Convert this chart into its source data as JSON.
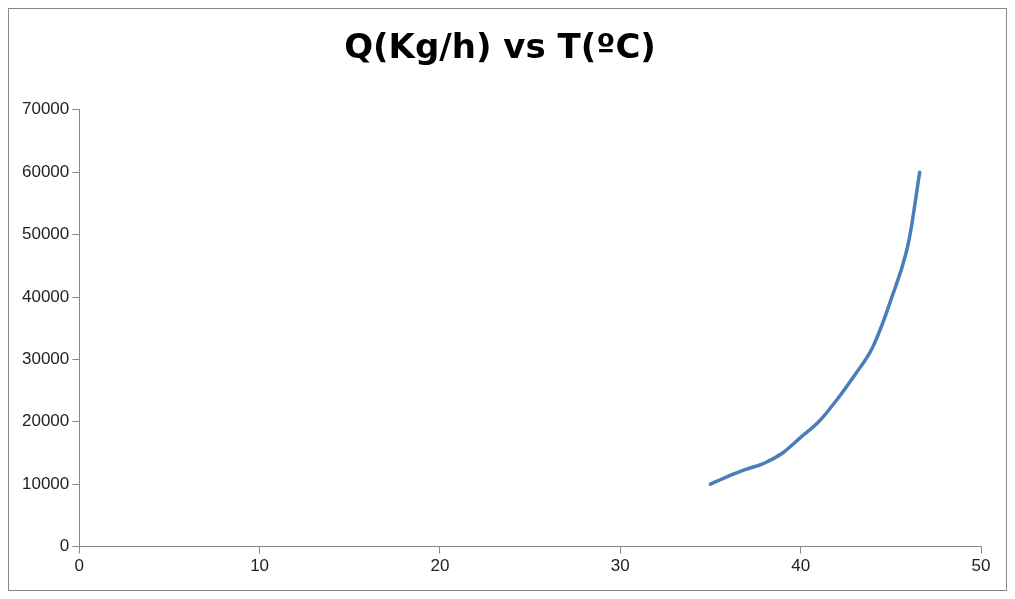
{
  "chart_data": {
    "type": "line",
    "title": "Q(Kg/h) vs T(ºC)",
    "x": [
      35,
      36,
      37,
      38,
      39,
      40,
      41,
      42,
      43,
      44,
      45,
      46,
      46.6
    ],
    "series": [
      {
        "color": "#4a7ebb",
        "values": [
          10000,
          11300,
          12400,
          13400,
          15000,
          17500,
          20000,
          23500,
          27500,
          32000,
          39500,
          49000,
          60000
        ]
      }
    ],
    "xlim": [
      0,
      50
    ],
    "xticks": [
      0,
      10,
      20,
      30,
      40,
      50
    ],
    "ylim": [
      0,
      70000
    ],
    "yticks": [
      0,
      10000,
      20000,
      30000,
      40000,
      50000,
      60000,
      70000
    ],
    "grid": false,
    "legend": false,
    "marker": "none",
    "line_style": "solid"
  }
}
